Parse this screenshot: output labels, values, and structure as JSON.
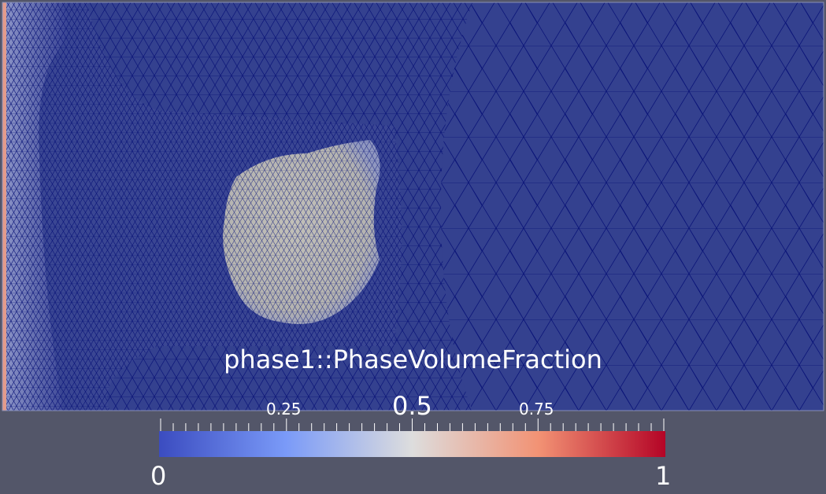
{
  "colorbar": {
    "title": "phase1::PhaseVolumeFraction",
    "min_label": "0",
    "max_label": "1",
    "tick_labels": [
      "0.25",
      "0.5",
      "0.75"
    ],
    "range": [
      0,
      1
    ],
    "colormap": "cool-to-warm",
    "colors": {
      "low": "#3b4cc0",
      "mid": "#dddddd",
      "high": "#b40426"
    }
  },
  "scene": {
    "background_color": "#535669",
    "field_color_low": "#34418f",
    "mesh_line_color": "#000a6e",
    "bubble_color": "#bcbab4",
    "wall_color": "#e39b8b"
  }
}
